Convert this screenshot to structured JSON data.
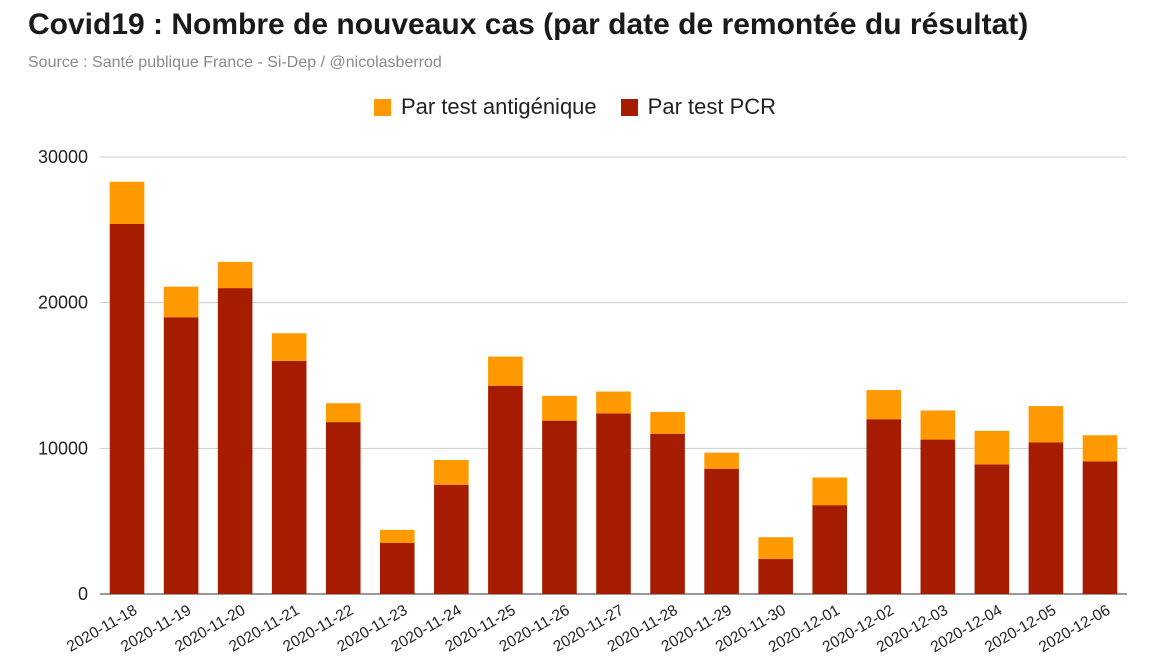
{
  "title": "Covid19 : Nombre de nouveaux cas (par date de remontée du résultat)",
  "subtitle": "Source : Santé publique France - Si-Dep / @nicolasberrod",
  "legend": [
    {
      "label": "Par test antigénique",
      "color": "#ff9900"
    },
    {
      "label": "Par test PCR",
      "color": "#a61c00"
    }
  ],
  "chart_data": {
    "type": "bar",
    "stacked": true,
    "categories": [
      "2020-11-18",
      "2020-11-19",
      "2020-11-20",
      "2020-11-21",
      "2020-11-22",
      "2020-11-23",
      "2020-11-24",
      "2020-11-25",
      "2020-11-26",
      "2020-11-27",
      "2020-11-28",
      "2020-11-29",
      "2020-11-30",
      "2020-12-01",
      "2020-12-02",
      "2020-12-03",
      "2020-12-04",
      "2020-12-05",
      "2020-12-06"
    ],
    "series": [
      {
        "name": "Par test PCR",
        "color": "#a61c00",
        "values": [
          25400,
          19000,
          21000,
          16000,
          11800,
          3500,
          7500,
          14300,
          11900,
          12400,
          11000,
          8600,
          2400,
          6100,
          12000,
          10600,
          8900,
          10400,
          9100
        ]
      },
      {
        "name": "Par test antigénique",
        "color": "#ff9900",
        "values": [
          2900,
          2100,
          1800,
          1900,
          1300,
          900,
          1700,
          2000,
          1700,
          1500,
          1500,
          1100,
          1500,
          1900,
          2000,
          2000,
          2300,
          2500,
          1800
        ]
      }
    ],
    "yticks": [
      0,
      10000,
      20000,
      30000
    ],
    "ylim": [
      0,
      30000
    ],
    "grid": true,
    "legend_position": "top"
  }
}
